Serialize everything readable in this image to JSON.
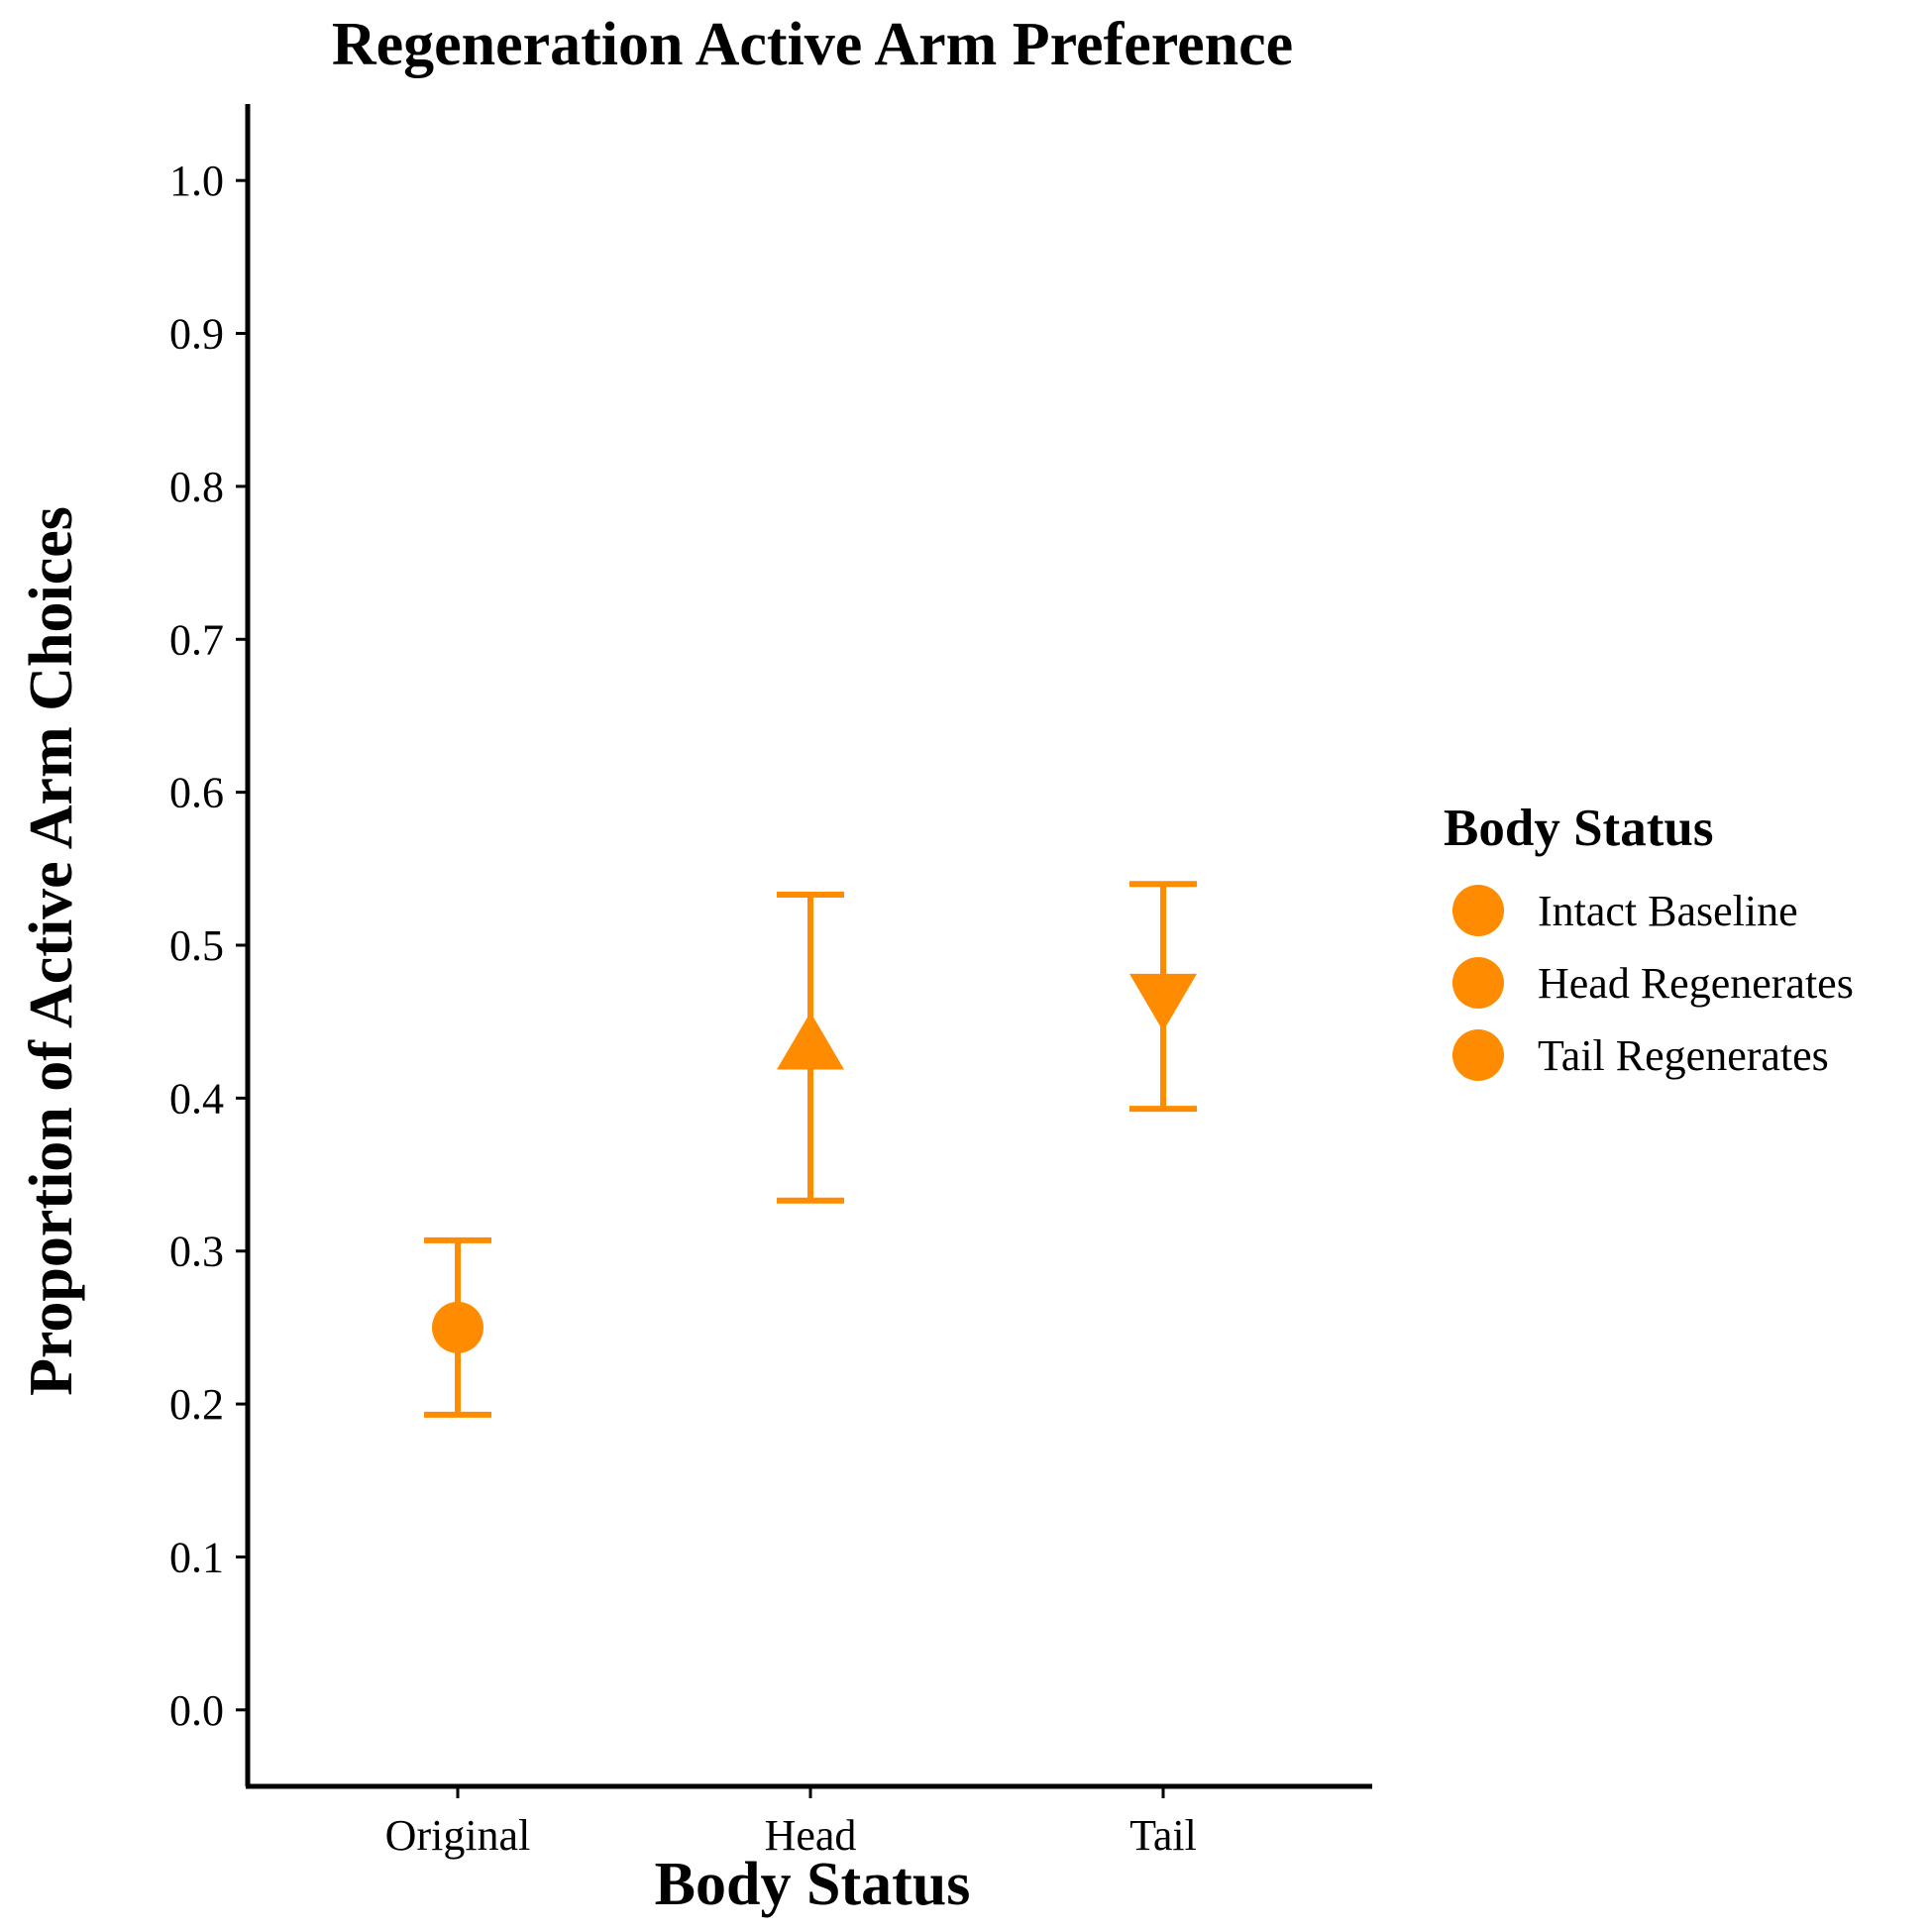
{
  "chart_data": {
    "type": "scatter",
    "title": "Regeneration Active Arm Preference",
    "xlabel": "Body Status",
    "ylabel": "Proportion of Active Arm Choices",
    "categories": [
      "Original",
      "Head",
      "Tail"
    ],
    "ylim": [
      -0.05,
      1.05
    ],
    "yticks": [
      "0.0",
      "0.1",
      "0.2",
      "0.3",
      "0.4",
      "0.5",
      "0.6",
      "0.7",
      "0.8",
      "0.9",
      "1.0"
    ],
    "grid": false,
    "legend_position": "right",
    "color": "#FF8C00",
    "series": [
      {
        "category": "Original",
        "value": 0.25,
        "lower": 0.193,
        "upper": 0.307,
        "marker": "circle"
      },
      {
        "category": "Head",
        "value": 0.433,
        "lower": 0.333,
        "upper": 0.533,
        "marker": "triangle-up"
      },
      {
        "category": "Tail",
        "value": 0.467,
        "lower": 0.393,
        "upper": 0.54,
        "marker": "triangle-down"
      }
    ],
    "legend": {
      "title": "Body Status",
      "entries": [
        "Intact Baseline",
        "Head Regenerates",
        "Tail Regenerates"
      ]
    }
  }
}
